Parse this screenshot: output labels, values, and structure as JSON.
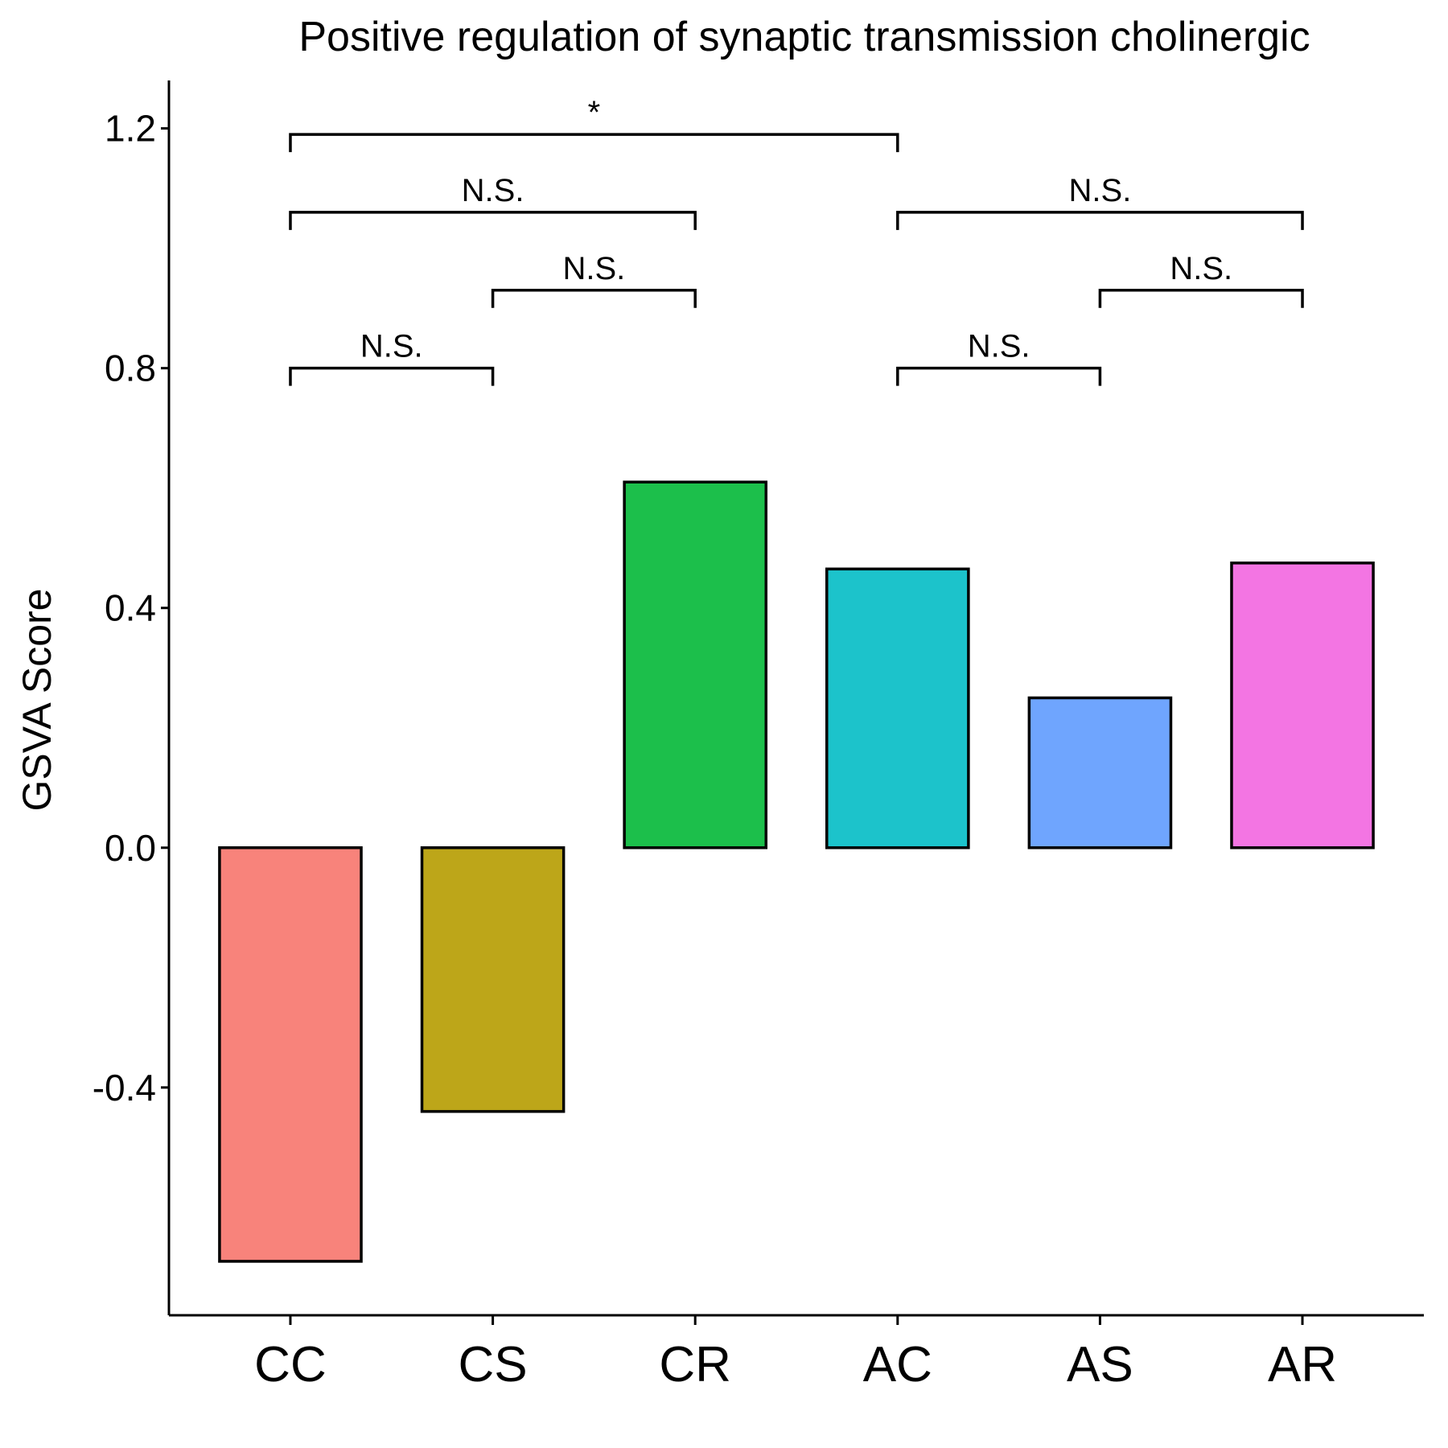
{
  "chart_data": {
    "type": "bar",
    "title": "Positive regulation of synaptic transmission cholinergic",
    "xlabel": "",
    "ylabel": "GSVA Score",
    "categories": [
      "CC",
      "CS",
      "CR",
      "AC",
      "AS",
      "AR"
    ],
    "values": [
      -0.69,
      -0.44,
      0.61,
      0.465,
      0.25,
      0.475
    ],
    "colors": [
      "#F8837B",
      "#BDA619",
      "#1CBF4B",
      "#1CC3CB",
      "#6FA5FE",
      "#F375E3"
    ],
    "ylim": [
      -0.78,
      1.28
    ],
    "yticks": [
      -0.4,
      0.0,
      0.4,
      0.8,
      1.2
    ],
    "ytick_labels": [
      "-0.4",
      "0.0",
      "0.4",
      "0.8",
      "1.2"
    ],
    "grid": false,
    "legend": "none",
    "comparisons": [
      {
        "from": "CC",
        "to": "CS",
        "y": 0.8,
        "label": "N.S."
      },
      {
        "from": "AC",
        "to": "AS",
        "y": 0.8,
        "label": "N.S."
      },
      {
        "from": "CS",
        "to": "CR",
        "y": 0.93,
        "label": "N.S."
      },
      {
        "from": "AS",
        "to": "AR",
        "y": 0.93,
        "label": "N.S."
      },
      {
        "from": "CC",
        "to": "CR",
        "y": 1.06,
        "label": "N.S."
      },
      {
        "from": "AC",
        "to": "AR",
        "y": 1.06,
        "label": "N.S."
      },
      {
        "from": "CC",
        "to": "AC",
        "y": 1.19,
        "label": "*"
      }
    ]
  }
}
